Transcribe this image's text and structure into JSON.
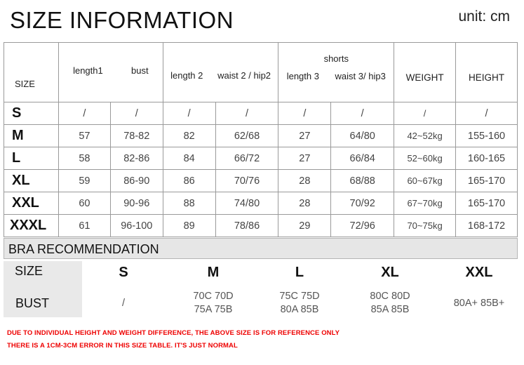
{
  "title": "SIZE INFORMATION",
  "unit": "unit: cm",
  "size_table": {
    "headers": {
      "size": "SIZE",
      "length1": "length1",
      "bust": "bust",
      "length2": "length 2",
      "waist2": "waist 2 / hip2",
      "shorts": "shorts",
      "length3": "length 3",
      "waist3": "waist 3/ hip3",
      "weight": "WEIGHT",
      "height": "HEIGHT"
    },
    "rows": [
      {
        "size": "S",
        "length1": "/",
        "bust": "/",
        "length2": "/",
        "waist2": "/",
        "length3": "/",
        "waist3": "/",
        "weight": "/",
        "height": "/"
      },
      {
        "size": "M",
        "length1": "57",
        "bust": "78-82",
        "length2": "82",
        "waist2": "62/68",
        "length3": "27",
        "waist3": "64/80",
        "weight": "42~52kg",
        "height": "155-160"
      },
      {
        "size": "L",
        "length1": "58",
        "bust": "82-86",
        "length2": "84",
        "waist2": "66/72",
        "length3": "27",
        "waist3": "66/84",
        "weight": "52~60kg",
        "height": "160-165"
      },
      {
        "size": "XL",
        "length1": "59",
        "bust": "86-90",
        "length2": "86",
        "waist2": "70/76",
        "length3": "28",
        "waist3": "68/88",
        "weight": "60~67kg",
        "height": "165-170"
      },
      {
        "size": "XXL",
        "length1": "60",
        "bust": "90-96",
        "length2": "88",
        "waist2": "74/80",
        "length3": "28",
        "waist3": "70/92",
        "weight": "67~70kg",
        "height": "165-170"
      },
      {
        "size": "XXXL",
        "length1": "61",
        "bust": "96-100",
        "length2": "89",
        "waist2": "78/86",
        "length3": "29",
        "waist3": "72/96",
        "weight": "70~75kg",
        "height": "168-172"
      }
    ]
  },
  "bra": {
    "section_title": "BRA RECOMMENDATION",
    "size_label": "SIZE",
    "bust_label": "BUST",
    "sizes": [
      "S",
      "M",
      "L",
      "XL",
      "XXL"
    ],
    "bust_line1": [
      "/",
      "70C  70D",
      "75C  75D",
      "80C  80D",
      "80A+  85B+"
    ],
    "bust_line2": [
      "",
      "75A  75B",
      "80A  85B",
      "85A  85B",
      ""
    ]
  },
  "notes": [
    "DUE TO INDIVIDUAL HEIGHT AND WEIGHT DIFFERENCE, THE ABOVE SIZE IS FOR REFERENCE ONLY",
    "THERE IS A 1CM-3CM ERROR IN THIS SIZE TABLE. IT'S JUST NORMAL"
  ],
  "colors": {
    "note": "#e00000",
    "bra_bar": "#e6e6e6"
  }
}
